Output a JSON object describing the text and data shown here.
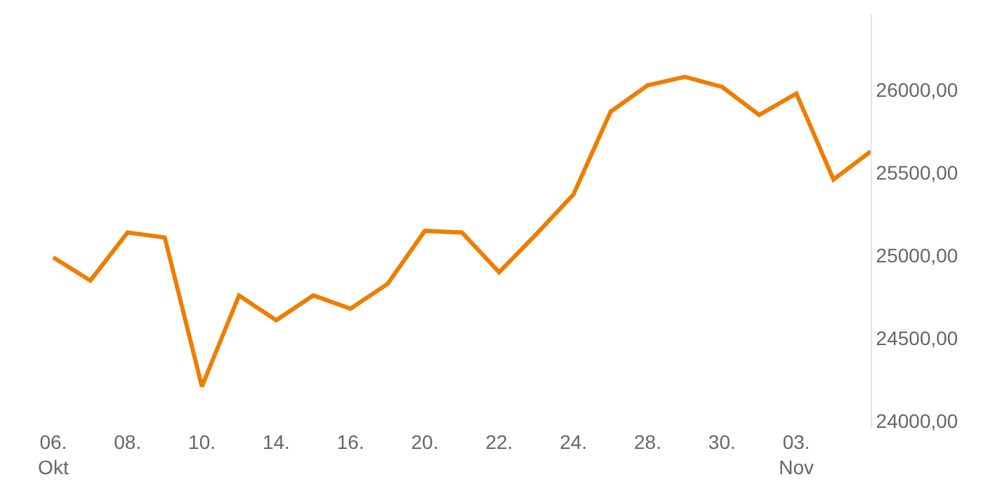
{
  "chart_data": {
    "type": "line",
    "categories": [
      "06.\nOkt",
      null,
      "08.",
      null,
      "10.",
      null,
      "14.",
      null,
      "16.",
      null,
      "20.",
      null,
      "22.",
      null,
      "24.",
      null,
      "28.",
      null,
      "30.",
      null,
      "03.\nNov",
      null,
      null
    ],
    "series": [
      {
        "color": "#ef7d00",
        "values": [
          24990,
          24850,
          25140,
          25110,
          24210,
          24760,
          24610,
          24760,
          24680,
          24830,
          25150,
          25140,
          24900,
          25130,
          25370,
          25870,
          26030,
          26080,
          26020,
          25850,
          25980,
          25460,
          25630
        ]
      }
    ],
    "ylim": [
      23960,
      26460
    ],
    "yticks": [
      {
        "value": 24000,
        "label": "24000,00"
      },
      {
        "value": 24500,
        "label": "24500,00"
      },
      {
        "value": 25000,
        "label": "25000,00"
      },
      {
        "value": 25500,
        "label": "25500,00"
      },
      {
        "value": 26000,
        "label": "26000,00"
      }
    ],
    "legend": false,
    "marker": "none",
    "line_style": "solid"
  }
}
